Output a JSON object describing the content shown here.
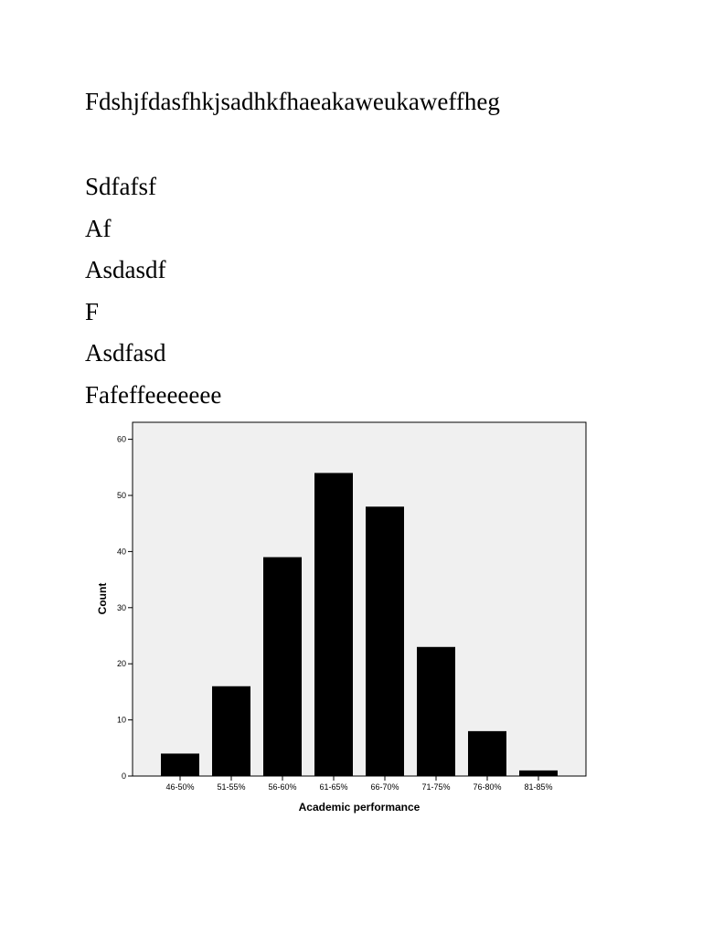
{
  "document": {
    "heading": "Fdshjfdasfhkjsadhkfhaeakaweukaweffheg",
    "lines": [
      "Sdfafsf",
      "Af",
      "Asdasdf",
      "F",
      "Asdfasd",
      "Fafeffeeeeeee"
    ]
  },
  "chart_data": {
    "type": "bar",
    "title": "",
    "xlabel": "Academic performance",
    "ylabel": "Count",
    "categories": [
      "46-50%",
      "51-55%",
      "56-60%",
      "61-65%",
      "66-70%",
      "71-75%",
      "76-80%",
      "81-85%"
    ],
    "values": [
      4,
      16,
      39,
      54,
      48,
      23,
      8,
      1
    ],
    "ylim": [
      0,
      63
    ],
    "yticks": [
      0,
      10,
      20,
      30,
      40,
      50,
      60
    ],
    "grid": false,
    "legend": "none",
    "colors": {
      "bar": "#000000",
      "plot_background": "#f0f0f0",
      "frame": "#000000"
    }
  }
}
